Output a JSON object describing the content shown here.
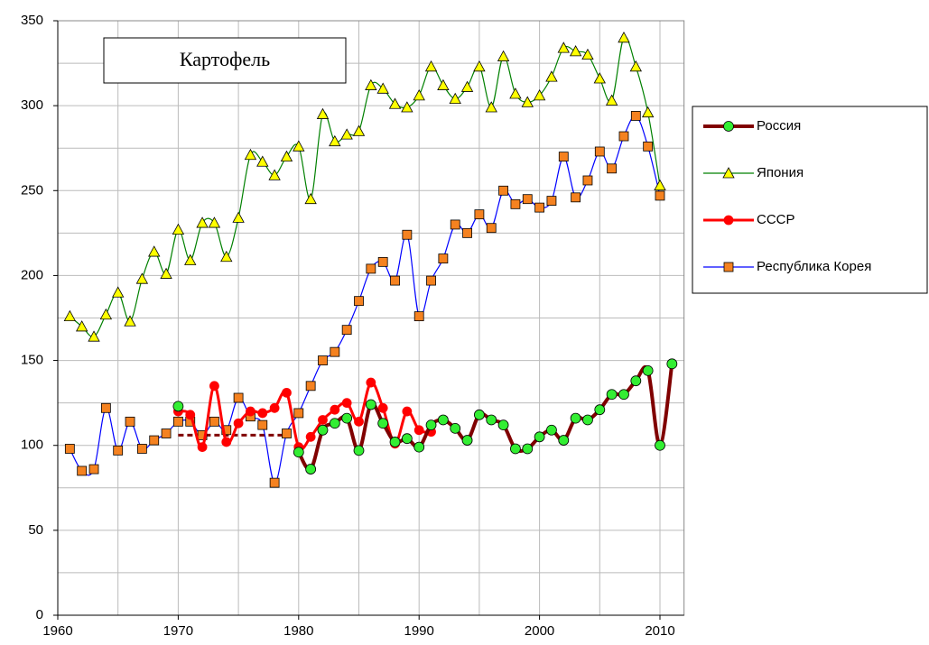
{
  "chart_data": {
    "type": "line",
    "title": "Картофель",
    "x": [
      1961,
      1962,
      1963,
      1964,
      1965,
      1966,
      1967,
      1968,
      1969,
      1970,
      1971,
      1972,
      1973,
      1974,
      1975,
      1976,
      1977,
      1978,
      1979,
      1980,
      1981,
      1982,
      1983,
      1984,
      1985,
      1986,
      1987,
      1988,
      1989,
      1990,
      1991,
      1992,
      1993,
      1994,
      1995,
      1996,
      1997,
      1998,
      1999,
      2000,
      2001,
      2002,
      2003,
      2004,
      2005,
      2006,
      2007,
      2008,
      2009,
      2010,
      2011
    ],
    "series": [
      {
        "name": "Республика Корея",
        "color": "#0000ff",
        "marker": "square",
        "marker_color": "#f58220",
        "values": [
          98,
          85,
          86,
          122,
          97,
          114,
          98,
          103,
          107,
          114,
          114,
          106,
          114,
          109,
          128,
          117,
          112,
          78,
          107,
          119,
          135,
          150,
          155,
          168,
          185,
          204,
          208,
          197,
          224,
          176,
          197,
          210,
          230,
          225,
          236,
          228,
          250,
          242,
          245,
          240,
          244,
          270,
          246,
          256,
          273,
          263,
          282,
          294,
          276,
          247,
          null
        ]
      },
      {
        "name": "Япония",
        "color": "#008000",
        "marker": "triangle",
        "marker_color": "#ffff00",
        "values": [
          176,
          170,
          164,
          177,
          190,
          173,
          198,
          214,
          201,
          227,
          209,
          231,
          231,
          211,
          234,
          271,
          267,
          259,
          270,
          276,
          245,
          295,
          279,
          283,
          285,
          312,
          310,
          301,
          299,
          306,
          323,
          312,
          304,
          311,
          323,
          299,
          329,
          307,
          302,
          306,
          317,
          334,
          332,
          330,
          316,
          303,
          340,
          323,
          296,
          253,
          null
        ]
      },
      {
        "name": "СССР",
        "color": "#ff0000",
        "marker": "circle",
        "marker_color": "#ff0000",
        "values": [
          null,
          null,
          null,
          null,
          null,
          null,
          null,
          null,
          null,
          120,
          118,
          99,
          135,
          102,
          113,
          120,
          119,
          122,
          131,
          99,
          105,
          115,
          121,
          125,
          114,
          137,
          122,
          101,
          120,
          109,
          108,
          null,
          null,
          null,
          null,
          null,
          null,
          null,
          null,
          null,
          null,
          null,
          null,
          null,
          null,
          null,
          null,
          null,
          null,
          null,
          null
        ]
      },
      {
        "name": "Россия",
        "color": "#800000",
        "marker": "circle",
        "marker_color": "#33ee33",
        "values": [
          null,
          null,
          null,
          null,
          null,
          null,
          null,
          null,
          null,
          123,
          null,
          null,
          null,
          null,
          null,
          null,
          null,
          null,
          null,
          96,
          86,
          109,
          113,
          116,
          97,
          124,
          113,
          102,
          104,
          99,
          112,
          115,
          110,
          103,
          118,
          115,
          112,
          98,
          98,
          105,
          109,
          103,
          116,
          115,
          121,
          130,
          130,
          138,
          144,
          100,
          148
        ]
      }
    ],
    "reference_line": {
      "color": "#800000",
      "x": [
        1970,
        1979
      ],
      "value": 106
    },
    "xlim": [
      1960,
      2012
    ],
    "xticks": [
      1960,
      1970,
      1980,
      1990,
      2000,
      2010
    ],
    "xgrid": [
      1960,
      1965,
      1970,
      1975,
      1980,
      1985,
      1990,
      1995,
      2000,
      2005,
      2010
    ],
    "ylim": [
      0,
      350
    ],
    "yticks": [
      0,
      50,
      100,
      150,
      200,
      250,
      300,
      350
    ],
    "ygrid": [
      25,
      50,
      75,
      100,
      125,
      150,
      175,
      200,
      225,
      250,
      275,
      300,
      325,
      350
    ],
    "grid": true,
    "legend": "right"
  }
}
